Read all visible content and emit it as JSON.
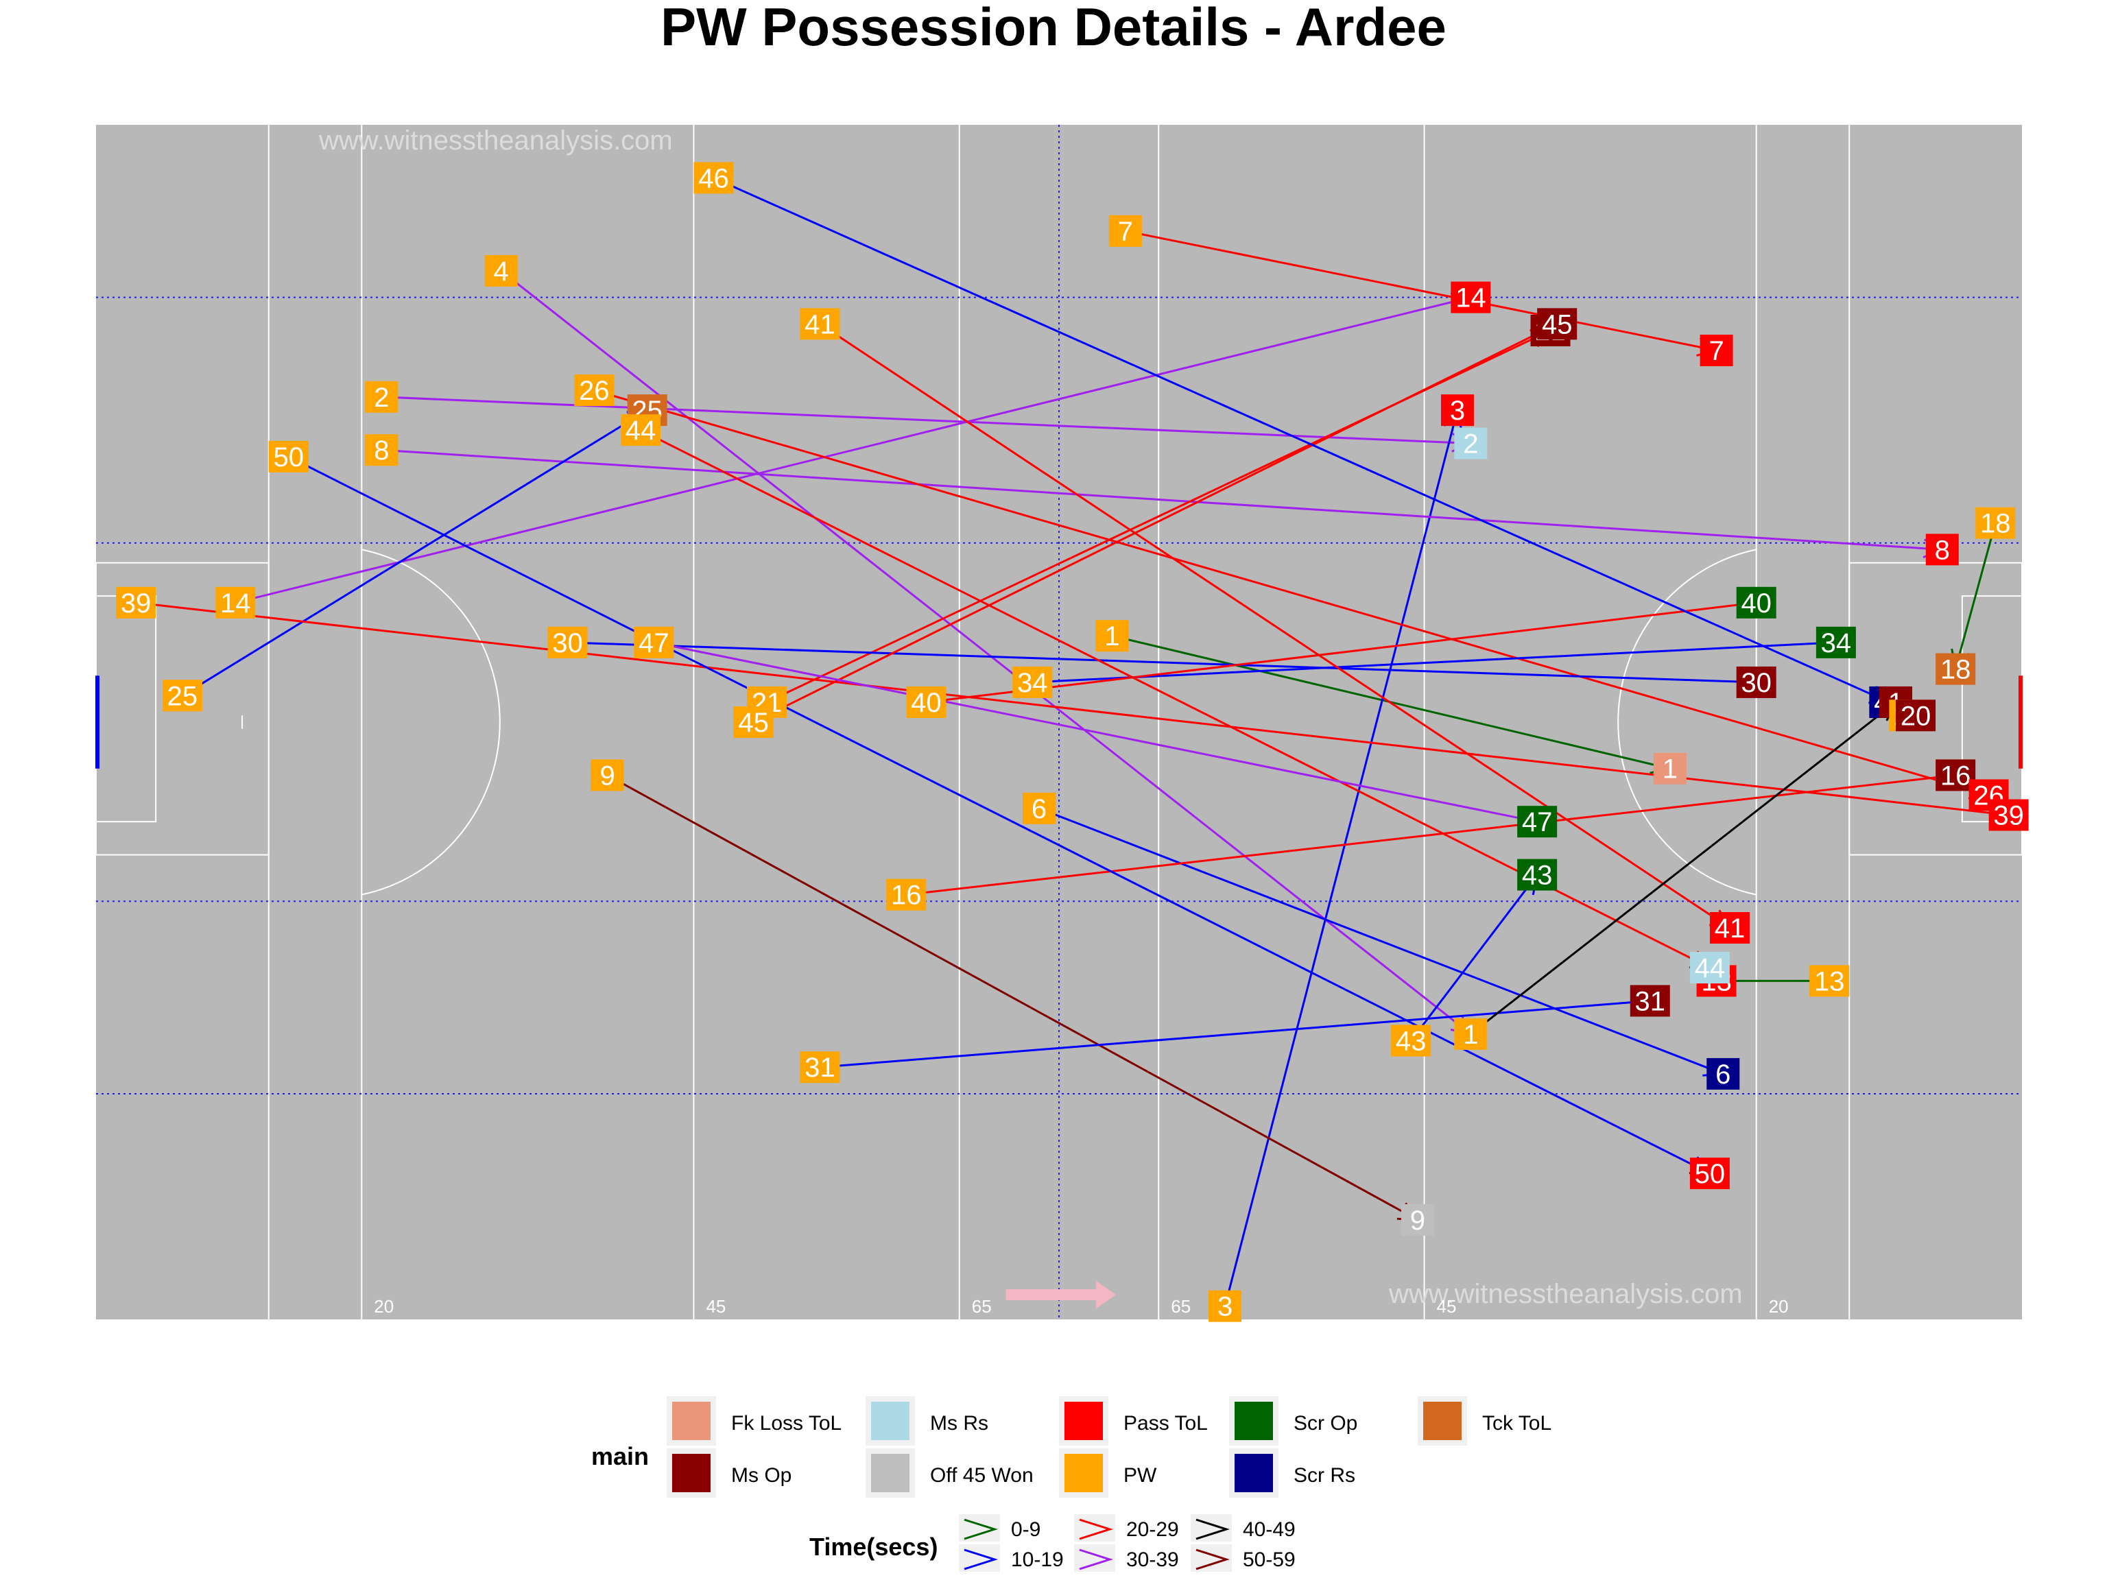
{
  "title": "PW Possession Details - Ardee",
  "watermark": "www.witnesstheanalysis.com",
  "pitch_markings": [
    "20",
    "45",
    "65",
    "65",
    "45",
    "20"
  ],
  "chart_data": {
    "type": "scatter",
    "title": "PW Possession Details - Ardee",
    "xlim": [
      0,
      145
    ],
    "ylim": [
      0,
      90
    ],
    "grid": false,
    "legend_position": "bottom",
    "x_tick_labels": [
      "20",
      "45",
      "65",
      "65",
      "45",
      "20"
    ],
    "legend": {
      "main": {
        "title": "main",
        "entries": [
          {
            "label": "Fk Loss ToL",
            "color": "#E9967A"
          },
          {
            "label": "Ms Op",
            "color": "#8B0000"
          },
          {
            "label": "Ms Rs",
            "color": "#ADD8E6"
          },
          {
            "label": "Off 45 Won",
            "color": "#BEBEBE"
          },
          {
            "label": "Pass ToL",
            "color": "#FF0000"
          },
          {
            "label": "PW",
            "color": "#FFA500"
          },
          {
            "label": "Scr Op",
            "color": "#006400"
          },
          {
            "label": "Scr Rs",
            "color": "#00008B"
          },
          {
            "label": "Tck ToL",
            "color": "#D2691E"
          }
        ]
      },
      "time": {
        "title": "Time(secs)",
        "entries": [
          {
            "label": "0-9",
            "color": "#006400"
          },
          {
            "label": "10-19",
            "color": "#0000FF"
          },
          {
            "label": "20-29",
            "color": "#FF0000"
          },
          {
            "label": "30-39",
            "color": "#A020F0"
          },
          {
            "label": "40-49",
            "color": "#000000"
          },
          {
            "label": "50-59",
            "color": "#800000"
          }
        ]
      }
    },
    "possessions": [
      {
        "id": "1",
        "start": [
          76.5,
          51.5
        ],
        "end": [
          118.5,
          41.5
        ],
        "time": "0-9",
        "outcome": "Fk Loss ToL"
      },
      {
        "id": "2",
        "start": [
          21.5,
          69.5
        ],
        "end": [
          103.5,
          66.0
        ],
        "time": "30-39",
        "outcome": "Ms Rs"
      },
      {
        "id": "3",
        "start": [
          85.0,
          1.0
        ],
        "end": [
          102.5,
          68.5
        ],
        "time": "10-19",
        "outcome": "Pass ToL"
      },
      {
        "id": "4",
        "start": [
          30.5,
          79.0
        ],
        "end": [
          103.5,
          21.5
        ],
        "time": "30-39",
        "outcome": "Ms Rs"
      },
      {
        "id": "6",
        "start": [
          71.0,
          38.5
        ],
        "end": [
          122.5,
          18.5
        ],
        "time": "10-19",
        "outcome": "Scr Rs"
      },
      {
        "id": "7",
        "start": [
          77.5,
          82.0
        ],
        "end": [
          122.0,
          73.0
        ],
        "time": "20-29",
        "outcome": "Pass ToL"
      },
      {
        "id": "8",
        "start": [
          21.5,
          65.5
        ],
        "end": [
          139.0,
          58.0
        ],
        "time": "30-39",
        "outcome": "Pass ToL"
      },
      {
        "id": "9",
        "start": [
          38.5,
          41.0
        ],
        "end": [
          99.5,
          7.5
        ],
        "time": "50-59",
        "outcome": "Off 45 Won"
      },
      {
        "id": "13",
        "start": [
          130.5,
          25.5
        ],
        "end": [
          122.0,
          25.5
        ],
        "time": "0-9",
        "outcome": "Pass ToL"
      },
      {
        "id": "14",
        "start": [
          10.5,
          54.0
        ],
        "end": [
          103.5,
          77.0
        ],
        "time": "30-39",
        "outcome": "Pass ToL"
      },
      {
        "id": "16",
        "start": [
          61.0,
          32.0
        ],
        "end": [
          140.0,
          41.0
        ],
        "time": "20-29",
        "outcome": "Ms Op"
      },
      {
        "id": "18",
        "start": [
          143.0,
          60.0
        ],
        "end": [
          140.0,
          49.0
        ],
        "time": "0-9",
        "outcome": "Tck ToL"
      },
      {
        "id": "21",
        "start": [
          50.5,
          46.5
        ],
        "end": [
          109.5,
          74.5
        ],
        "time": "20-29",
        "outcome": "Ms Op"
      },
      {
        "id": "25",
        "start": [
          6.5,
          47.0
        ],
        "end": [
          41.5,
          68.5
        ],
        "time": "10-19",
        "outcome": "Tck ToL"
      },
      {
        "id": "26",
        "start": [
          37.5,
          70.0
        ],
        "end": [
          142.5,
          39.5
        ],
        "time": "20-29",
        "outcome": "Pass ToL"
      },
      {
        "id": "30",
        "start": [
          35.5,
          51.0
        ],
        "end": [
          125.0,
          48.0
        ],
        "time": "10-19",
        "outcome": "Ms Op"
      },
      {
        "id": "31",
        "start": [
          54.5,
          19.0
        ],
        "end": [
          117.0,
          24.0
        ],
        "time": "10-19",
        "outcome": "Ms Op"
      },
      {
        "id": "34",
        "start": [
          70.5,
          48.0
        ],
        "end": [
          131.0,
          51.0
        ],
        "time": "10-19",
        "outcome": "Scr Op"
      },
      {
        "id": "39",
        "start": [
          3.0,
          54.0
        ],
        "end": [
          144.0,
          38.0
        ],
        "time": "20-29",
        "outcome": "Pass ToL"
      },
      {
        "id": "40",
        "start": [
          62.5,
          46.5
        ],
        "end": [
          125.0,
          54.0
        ],
        "time": "20-29",
        "outcome": "Scr Op"
      },
      {
        "id": "41",
        "start": [
          54.5,
          75.0
        ],
        "end": [
          123.0,
          29.5
        ],
        "time": "20-29",
        "outcome": "Pass ToL"
      },
      {
        "id": "43",
        "start": [
          99.0,
          21.0
        ],
        "end": [
          108.5,
          33.5
        ],
        "time": "10-19",
        "outcome": "Scr Op"
      },
      {
        "id": "44",
        "start": [
          41.0,
          67.0
        ],
        "end": [
          121.5,
          26.5
        ],
        "time": "20-29",
        "outcome": "Ms Rs"
      },
      {
        "id": "45",
        "start": [
          49.5,
          45.0
        ],
        "end": [
          110.0,
          75.0
        ],
        "time": "20-29",
        "outcome": "Ms Op"
      },
      {
        "id": "46",
        "start": [
          46.5,
          86.0
        ],
        "end": [
          135.0,
          46.5
        ],
        "time": "10-19",
        "outcome": "Scr Rs"
      },
      {
        "id": "47",
        "start": [
          42.0,
          51.0
        ],
        "end": [
          108.5,
          37.5
        ],
        "time": "30-39",
        "outcome": "Scr Op"
      },
      {
        "id": "50",
        "start": [
          14.5,
          65.0
        ],
        "end": [
          121.5,
          11.0
        ],
        "time": "10-19",
        "outcome": "Pass ToL"
      },
      {
        "id": "1",
        "start": [
          103.5,
          21.5
        ],
        "end": [
          135.5,
          46.5
        ],
        "time": "40-49",
        "outcome": "Ms Op"
      },
      {
        "id": "20",
        "start": [
          136.5,
          45.5
        ],
        "end": [
          137.0,
          45.5
        ],
        "time": "30-39",
        "outcome": "Ms Op"
      }
    ]
  }
}
